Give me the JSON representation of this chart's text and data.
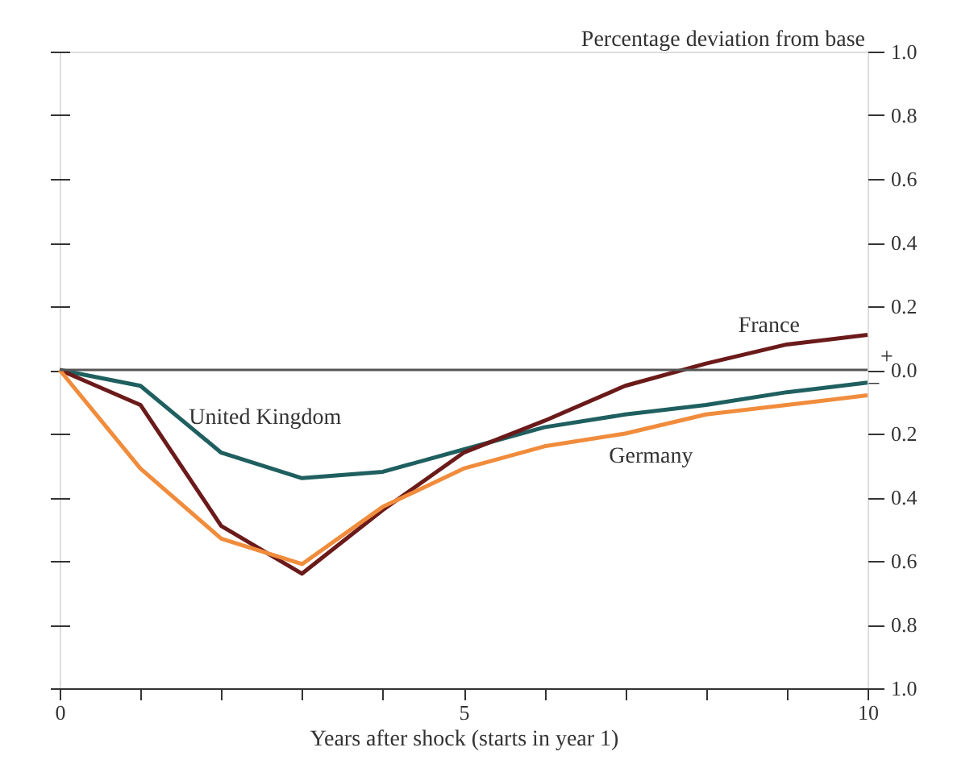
{
  "chart_data": {
    "type": "line",
    "xlabel": "Years after shock (starts in year 1)",
    "ylabel": "Percentage deviation from base",
    "x": [
      0,
      1,
      2,
      3,
      4,
      5,
      6,
      7,
      8,
      9,
      10
    ],
    "series": [
      {
        "name": "United Kingdom",
        "color": "#1f5f5f",
        "values": [
          0,
          -0.05,
          -0.26,
          -0.34,
          -0.32,
          -0.25,
          -0.18,
          -0.14,
          -0.11,
          -0.07,
          -0.04
        ]
      },
      {
        "name": "France",
        "color": "#6b1a1a",
        "values": [
          0,
          -0.11,
          -0.49,
          -0.64,
          -0.44,
          -0.26,
          -0.16,
          -0.05,
          0.02,
          0.08,
          0.11
        ]
      },
      {
        "name": "Germany",
        "color": "#f08c3c",
        "values": [
          0,
          -0.31,
          -0.53,
          -0.61,
          -0.43,
          -0.31,
          -0.24,
          -0.2,
          -0.14,
          -0.11,
          -0.08
        ]
      }
    ],
    "xlim": [
      0,
      10
    ],
    "xticks": [
      0,
      {
        "value": 1,
        "label": null
      },
      {
        "value": 2,
        "label": null
      },
      {
        "value": 3,
        "label": null
      },
      {
        "value": 4,
        "label": null
      },
      5,
      {
        "value": 6,
        "label": null
      },
      {
        "value": 7,
        "label": null
      },
      {
        "value": 8,
        "label": null
      },
      {
        "value": 9,
        "label": null
      },
      10
    ],
    "ylim": [
      -1,
      1
    ],
    "yticks": [
      {
        "value": -1,
        "label": "1.0"
      },
      {
        "value": -0.8,
        "label": "0.8"
      },
      {
        "value": -0.6,
        "label": "0.6"
      },
      {
        "value": -0.4,
        "label": "0.4"
      },
      {
        "value": -0.2,
        "label": "0.2"
      },
      {
        "value": 0,
        "label": "0.0"
      },
      {
        "value": 0.2,
        "label": "0.2"
      },
      {
        "value": 0.4,
        "label": "0.4"
      },
      {
        "value": 0.6,
        "label": "0.6"
      },
      {
        "value": 0.8,
        "label": "0.8"
      },
      {
        "value": 1,
        "label": "1.0"
      }
    ],
    "ref_lines": [
      {
        "axis": "y",
        "value": 0,
        "color": "#555555"
      }
    ],
    "annotations": [
      "+",
      "−"
    ],
    "marker": "none",
    "line_style": "solid",
    "grid": false,
    "legend": false
  }
}
